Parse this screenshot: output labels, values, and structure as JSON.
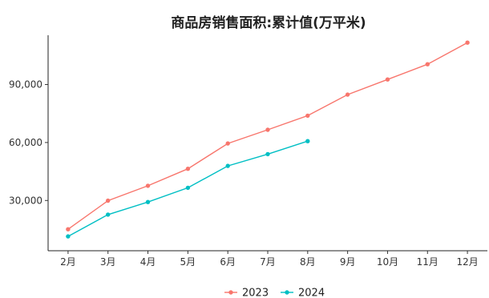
{
  "chart_data": {
    "type": "line",
    "title": "商品房销售面积:累计值(万平米)",
    "xlabel": "",
    "ylabel": "",
    "categories": [
      "2月",
      "3月",
      "4月",
      "5月",
      "6月",
      "7月",
      "8月",
      "9月",
      "10月",
      "11月",
      "12月"
    ],
    "ylim": [
      4000,
      115500
    ],
    "yticks": [
      30000,
      60000,
      90000
    ],
    "ytick_labels": [
      "30,000",
      "60,000",
      "90,000"
    ],
    "grid": false,
    "legend_position": "bottom",
    "series": [
      {
        "name": "2023",
        "color": "#f8766d",
        "values": [
          15100,
          29900,
          37600,
          46400,
          59500,
          66600,
          73900,
          84800,
          92600,
          100500,
          111700
        ]
      },
      {
        "name": "2024",
        "color": "#00bfc4",
        "values": [
          11400,
          22700,
          29200,
          36600,
          47900,
          54000,
          60700,
          null,
          null,
          null,
          null
        ]
      }
    ]
  }
}
